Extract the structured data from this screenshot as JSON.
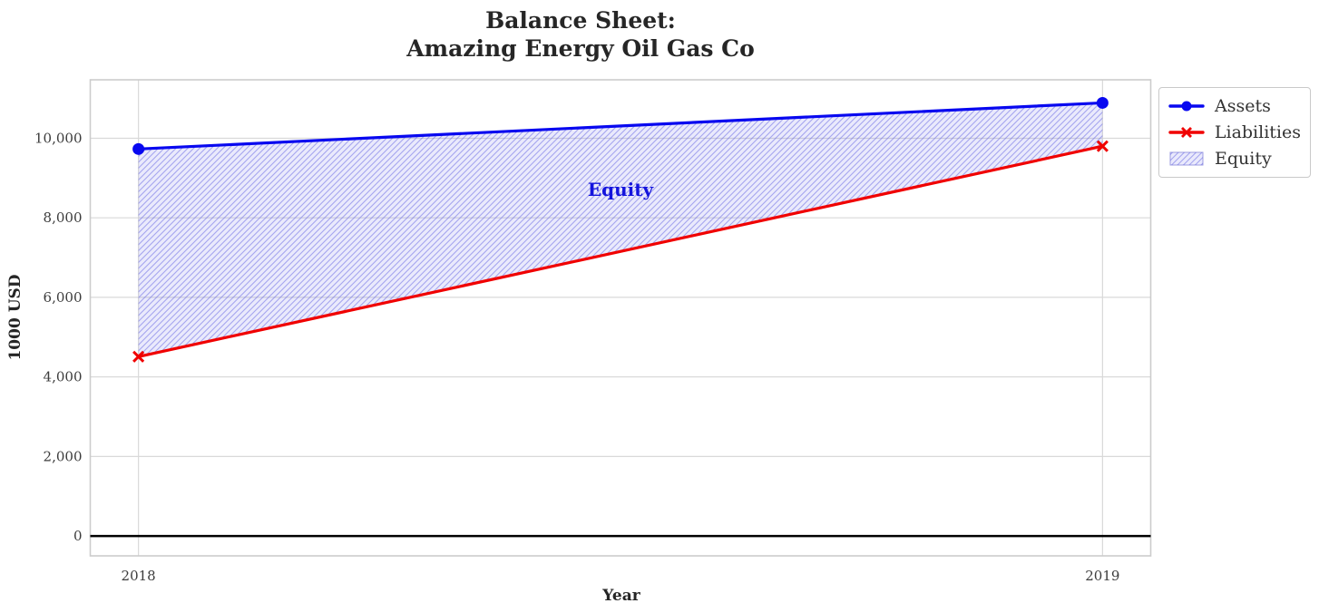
{
  "figure": {
    "title_lines": [
      "Balance Sheet:",
      "Amazing Energy Oil Gas Co"
    ]
  },
  "chart_data": {
    "type": "line",
    "title": "Balance Sheet:\nAmazing Energy Oil Gas Co",
    "xlabel": "Year",
    "ylabel": "1000 USD",
    "x": [
      2018,
      2019
    ],
    "xtick_labels": [
      "2018",
      "2019"
    ],
    "yticks": [
      0,
      2000,
      4000,
      6000,
      8000,
      10000
    ],
    "ytick_labels": [
      "0",
      "2,000",
      "4,000",
      "6,000",
      "8,000",
      "10,000"
    ],
    "xlim": [
      2017.95,
      2019.05
    ],
    "ylim": [
      -500,
      11470
    ],
    "grid": true,
    "zero_line": true,
    "series": [
      {
        "name": "Assets",
        "values": [
          9730,
          10890
        ],
        "color": "#0808f0",
        "marker": "circle"
      },
      {
        "name": "Liabilities",
        "values": [
          4510,
          9800
        ],
        "color": "#f00000",
        "marker": "x"
      }
    ],
    "fill_between": {
      "label": "Equity",
      "between": [
        "Assets",
        "Liabilities"
      ],
      "fill_color": "rgba(90,90,230,0.13)",
      "hatch_color": "rgba(95,95,225,0.50)",
      "edge_color": "#9c9ce0"
    },
    "annotation": {
      "text": "Equity",
      "x": 2018.5,
      "y": 8700,
      "color": "#1414dd"
    },
    "legend": {
      "position": "upper-right-outside",
      "entries": [
        "Assets",
        "Liabilities",
        "Equity"
      ]
    },
    "axis_colors": {
      "grid": "#d9d9d9",
      "frame": "#cccccc",
      "zero_line": "#000000"
    }
  }
}
